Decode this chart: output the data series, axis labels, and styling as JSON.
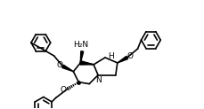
{
  "bg_color": "#ffffff",
  "line_color": "#000000",
  "bond_width": 1.2,
  "fig_width": 2.3,
  "fig_height": 1.23,
  "dpi": 100,
  "xlim": [
    0,
    23
  ],
  "ylim": [
    0,
    12.3
  ]
}
